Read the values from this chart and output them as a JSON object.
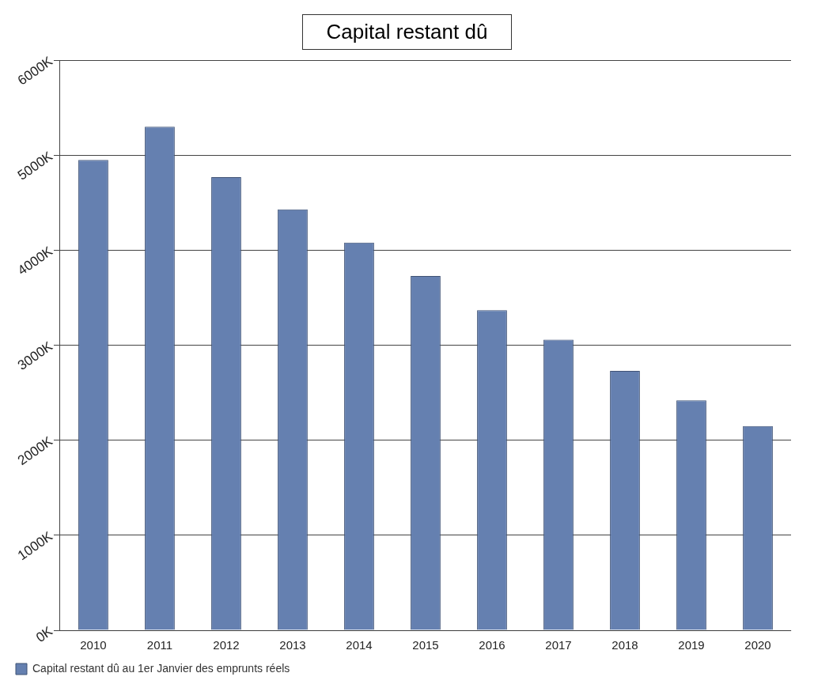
{
  "chart_data": {
    "type": "bar",
    "title": "Capital restant dû",
    "categories": [
      "2010",
      "2011",
      "2012",
      "2013",
      "2014",
      "2015",
      "2016",
      "2017",
      "2018",
      "2019",
      "2020"
    ],
    "series": [
      {
        "name": "Capital restant dû au 1er Janvier des emprunts réels",
        "color": "#6580b0",
        "values": [
          4950,
          5300,
          4770,
          4430,
          4080,
          3730,
          3370,
          3060,
          2730,
          2420,
          2150
        ]
      }
    ],
    "ylim": [
      0,
      6000
    ],
    "yticks": [
      {
        "value": 0,
        "label": "0K"
      },
      {
        "value": 1000,
        "label": "1000K"
      },
      {
        "value": 2000,
        "label": "2000K"
      },
      {
        "value": 3000,
        "label": "3000K"
      },
      {
        "value": 4000,
        "label": "4000K"
      },
      {
        "value": 5000,
        "label": "5000K"
      },
      {
        "value": 6000,
        "label": "6000K"
      }
    ],
    "grid": "y",
    "legend": "bottom left"
  }
}
